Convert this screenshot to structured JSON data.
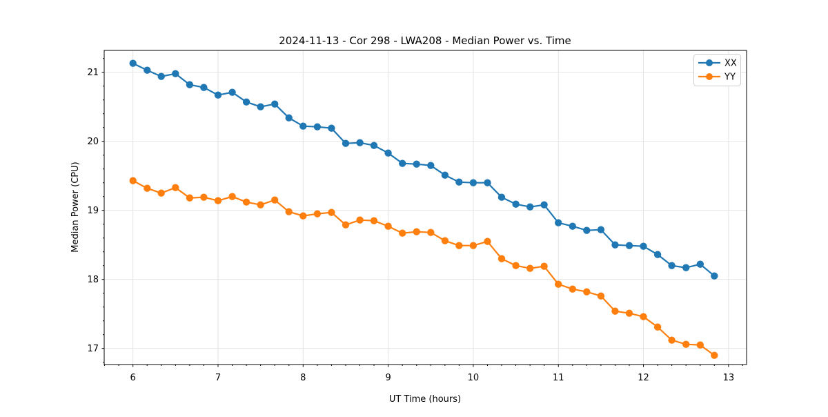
{
  "chart_data": {
    "type": "line",
    "title": "2024-11-13 - Cor 298 - LWA208 - Median Power vs. Time",
    "xlabel": "UT Time (hours)",
    "ylabel": "Median Power (CPU)",
    "xlim": [
      5.662,
      13.212
    ],
    "ylim": [
      16.767,
      21.317
    ],
    "x_ticks": [
      6,
      7,
      8,
      9,
      10,
      11,
      12,
      13
    ],
    "y_ticks": [
      17,
      18,
      19,
      20,
      21
    ],
    "x_minor_step": 0.1667,
    "y_minor_step": 0.2,
    "grid": true,
    "legend_position": "upper right",
    "x": [
      6.0,
      6.167,
      6.333,
      6.5,
      6.667,
      6.833,
      7.0,
      7.167,
      7.333,
      7.5,
      7.667,
      7.833,
      8.0,
      8.167,
      8.333,
      8.5,
      8.667,
      8.833,
      9.0,
      9.167,
      9.333,
      9.5,
      9.667,
      9.833,
      10.0,
      10.167,
      10.333,
      10.5,
      10.667,
      10.833,
      11.0,
      11.167,
      11.333,
      11.5,
      11.667,
      11.833,
      12.0,
      12.167,
      12.333,
      12.5,
      12.667,
      12.833
    ],
    "series": [
      {
        "name": "XX",
        "color": "#1f77b4",
        "values": [
          21.13,
          21.03,
          20.94,
          20.98,
          20.82,
          20.78,
          20.67,
          20.71,
          20.57,
          20.5,
          20.54,
          20.34,
          20.22,
          20.21,
          20.19,
          19.97,
          19.98,
          19.94,
          19.83,
          19.68,
          19.67,
          19.65,
          19.51,
          19.41,
          19.4,
          19.4,
          19.19,
          19.09,
          19.05,
          19.08,
          18.82,
          18.77,
          18.71,
          18.72,
          18.5,
          18.49,
          18.48,
          18.36,
          18.2,
          18.17,
          18.22,
          18.05
        ]
      },
      {
        "name": "YY",
        "color": "#ff7f0e",
        "values": [
          19.43,
          19.32,
          19.25,
          19.33,
          19.18,
          19.19,
          19.14,
          19.2,
          19.12,
          19.08,
          19.15,
          18.98,
          18.92,
          18.95,
          18.97,
          18.79,
          18.86,
          18.85,
          18.77,
          18.67,
          18.69,
          18.68,
          18.56,
          18.49,
          18.49,
          18.55,
          18.3,
          18.2,
          18.16,
          18.19,
          17.93,
          17.86,
          17.82,
          17.76,
          17.54,
          17.51,
          17.46,
          17.31,
          17.12,
          17.06,
          17.05,
          16.9
        ]
      }
    ]
  }
}
